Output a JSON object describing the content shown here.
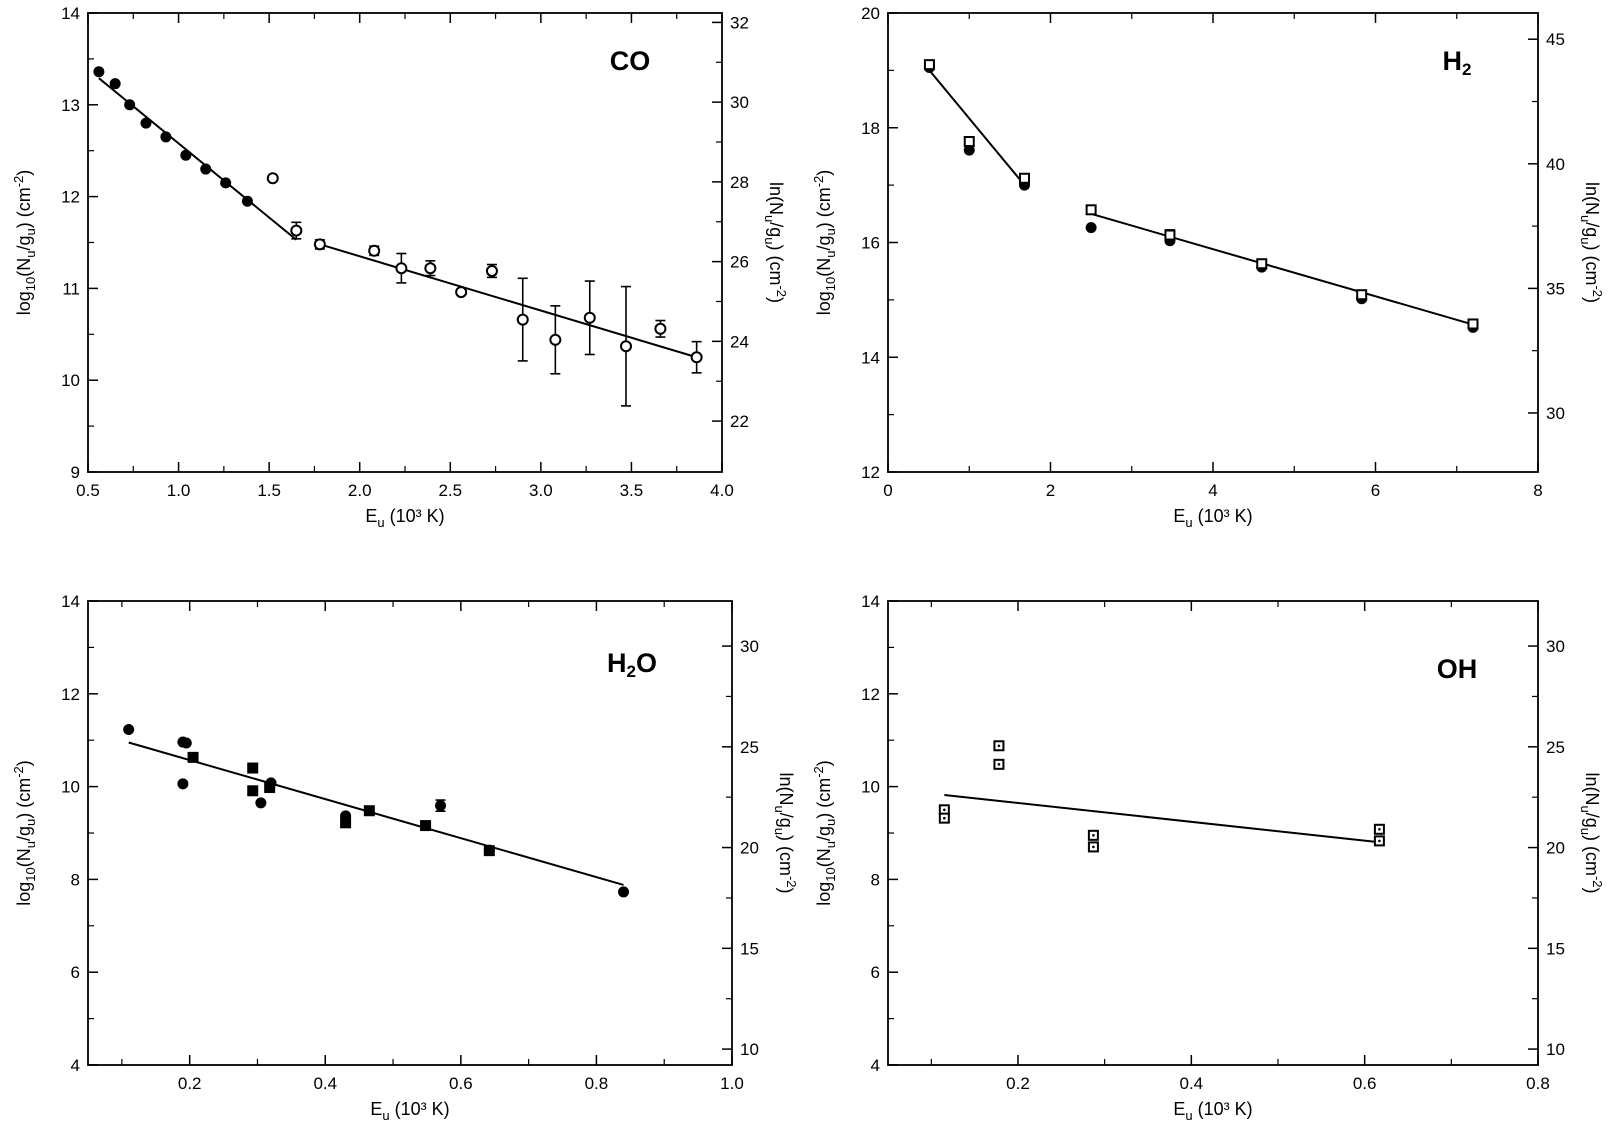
{
  "chart_data": [
    {
      "type": "scatter",
      "title": "CO",
      "title_base": "CO",
      "title_sub": "",
      "title_tail": "",
      "xlabel": "E",
      "xlabel_sub": "u",
      "xlabel_tail": " (10³ K)",
      "ylabel": "log",
      "ylabel_parts": [
        "log",
        "10",
        "(N",
        "u",
        "/g",
        "u",
        ") (cm",
        "-2",
        ")"
      ],
      "y2label_parts": [
        "ln(N",
        "u",
        "/g",
        "u",
        ") (cm",
        "-2",
        ")"
      ],
      "xlim": [
        0.5,
        4.0
      ],
      "ylim": [
        9,
        14
      ],
      "y2lim": [
        20.723,
        32.236
      ],
      "xticks": [
        0.5,
        1.0,
        1.5,
        2.0,
        2.5,
        3.0,
        3.5,
        4.0
      ],
      "xtick_labels": [
        "0.5",
        "1.0",
        "1.5",
        "2.0",
        "2.5",
        "3.0",
        "3.5",
        "4.0"
      ],
      "yticks": [
        9,
        10,
        11,
        12,
        13,
        14
      ],
      "ytick_labels": [
        "9",
        "10",
        "11",
        "12",
        "13",
        "14"
      ],
      "y2ticks": [
        22,
        24,
        26,
        28,
        30,
        32
      ],
      "y2tick_labels": [
        "22",
        "24",
        "26",
        "28",
        "30",
        "32"
      ],
      "series": [
        {
          "name": "filled circles",
          "marker": "filled-circle",
          "points": [
            [
              0.56,
              13.36
            ],
            [
              0.65,
              13.23
            ],
            [
              0.73,
              13.0
            ],
            [
              0.82,
              12.8
            ],
            [
              0.93,
              12.65
            ],
            [
              1.04,
              12.45
            ],
            [
              1.15,
              12.3
            ],
            [
              1.26,
              12.15
            ],
            [
              1.38,
              11.95
            ]
          ],
          "errors": [
            0,
            0,
            0,
            0,
            0,
            0,
            0,
            0,
            0
          ]
        },
        {
          "name": "open circles",
          "marker": "open-circle",
          "points": [
            [
              1.52,
              12.2
            ],
            [
              1.65,
              11.63
            ],
            [
              1.78,
              11.48
            ],
            [
              2.08,
              11.41
            ],
            [
              2.23,
              11.22
            ],
            [
              2.39,
              11.22
            ],
            [
              2.56,
              10.96
            ],
            [
              2.73,
              11.19
            ],
            [
              2.9,
              10.66
            ],
            [
              3.08,
              10.44
            ],
            [
              3.27,
              10.68
            ],
            [
              3.47,
              10.37
            ],
            [
              3.66,
              10.56
            ],
            [
              3.86,
              10.25
            ]
          ],
          "errors": [
            0.03,
            0.09,
            0.05,
            0.05,
            0.16,
            0.08,
            0.03,
            0.07,
            0.45,
            0.37,
            0.4,
            0.65,
            0.09,
            0.17
          ]
        }
      ],
      "fits": [
        [
          [
            0.56,
            13.29
          ],
          [
            1.65,
            11.53
          ]
        ],
        [
          [
            1.78,
            11.48
          ],
          [
            3.86,
            10.25
          ]
        ]
      ]
    },
    {
      "type": "scatter",
      "title": "H2",
      "title_base": "H",
      "title_sub": "2",
      "title_tail": "",
      "xlabel": "E",
      "xlabel_sub": "u",
      "xlabel_tail": " (10³ K)",
      "ylabel": "log",
      "ylabel_parts": [
        "log",
        "10",
        "(N",
        "u",
        "/g",
        "u",
        ") (cm",
        "-2",
        ")"
      ],
      "y2label_parts": [
        "ln(N",
        "u",
        "/g",
        "u",
        ") (cm",
        "-2",
        ")"
      ],
      "xlim": [
        0,
        8
      ],
      "ylim": [
        12,
        20
      ],
      "y2lim": [
        27.631,
        46.052
      ],
      "xticks": [
        0,
        2,
        4,
        6,
        8
      ],
      "xtick_labels": [
        "0",
        "2",
        "4",
        "6",
        "8"
      ],
      "yticks": [
        12,
        14,
        16,
        18,
        20
      ],
      "ytick_labels": [
        "12",
        "14",
        "16",
        "18",
        "20"
      ],
      "y2ticks": [
        30,
        35,
        40,
        45
      ],
      "y2tick_labels": [
        "30",
        "35",
        "40",
        "45"
      ],
      "series": [
        {
          "name": "filled circles",
          "marker": "filled-circle",
          "points": [
            [
              0.51,
              19.05
            ],
            [
              1.0,
              17.61
            ],
            [
              1.68,
              17.0
            ],
            [
              2.5,
              16.26
            ],
            [
              3.47,
              16.03
            ],
            [
              4.6,
              15.57
            ],
            [
              5.83,
              15.02
            ],
            [
              7.2,
              14.52
            ]
          ],
          "errors": [
            0,
            0,
            0,
            0,
            0,
            0,
            0,
            0
          ]
        },
        {
          "name": "open squares",
          "marker": "open-square",
          "points": [
            [
              0.51,
              19.1
            ],
            [
              1.0,
              17.76
            ],
            [
              1.68,
              17.12
            ],
            [
              2.5,
              16.57
            ],
            [
              3.47,
              16.13
            ],
            [
              4.6,
              15.63
            ],
            [
              5.83,
              15.09
            ],
            [
              7.2,
              14.58
            ]
          ],
          "errors": [
            0,
            0,
            0,
            0,
            0.09,
            0,
            0,
            0
          ]
        }
      ],
      "fits": [
        [
          [
            0.51,
            19.0
          ],
          [
            1.68,
            17.0
          ]
        ],
        [
          [
            2.5,
            16.5
          ],
          [
            7.2,
            14.57
          ]
        ]
      ]
    },
    {
      "type": "scatter",
      "title": "H2O",
      "title_base": "H",
      "title_sub": "2",
      "title_tail": "O",
      "xlabel": "E",
      "xlabel_sub": "u",
      "xlabel_tail": " (10³ K)",
      "ylabel": "log",
      "ylabel_parts": [
        "log",
        "10",
        "(N",
        "u",
        "/g",
        "u",
        ") (cm",
        "-2",
        ")"
      ],
      "y2label_parts": [
        "ln(N",
        "u",
        "/g",
        "u",
        ") (cm",
        "-2",
        ")"
      ],
      "xlim": [
        0.05,
        1.0
      ],
      "ylim": [
        4,
        14
      ],
      "y2lim": [
        9.21,
        32.236
      ],
      "xticks": [
        0.2,
        0.4,
        0.6,
        0.8,
        1.0
      ],
      "xtick_labels": [
        "0.2",
        "0.4",
        "0.6",
        "0.8",
        "1.0"
      ],
      "yticks": [
        4,
        6,
        8,
        10,
        12,
        14
      ],
      "ytick_labels": [
        "4",
        "6",
        "8",
        "10",
        "12",
        "14"
      ],
      "y2ticks": [
        10,
        15,
        20,
        25,
        30
      ],
      "y2tick_labels": [
        "10",
        "15",
        "20",
        "25",
        "30"
      ],
      "series": [
        {
          "name": "filled circles",
          "marker": "filled-circle",
          "points": [
            [
              0.11,
              11.23
            ],
            [
              0.19,
              10.96
            ],
            [
              0.195,
              10.94
            ],
            [
              0.19,
              10.06
            ],
            [
              0.305,
              9.65
            ],
            [
              0.32,
              10.08
            ],
            [
              0.43,
              9.37
            ],
            [
              0.57,
              9.59
            ],
            [
              0.642,
              8.63
            ],
            [
              0.84,
              7.73
            ]
          ],
          "errors": [
            0,
            0,
            0,
            0,
            0,
            0,
            0,
            0.12,
            0,
            0
          ]
        },
        {
          "name": "filled squares",
          "marker": "filled-square",
          "points": [
            [
              0.205,
              10.63
            ],
            [
              0.293,
              10.4
            ],
            [
              0.293,
              9.91
            ],
            [
              0.318,
              9.98
            ],
            [
              0.43,
              9.22
            ],
            [
              0.465,
              9.48
            ],
            [
              0.548,
              9.16
            ],
            [
              0.642,
              8.62
            ]
          ],
          "errors": [
            0,
            0,
            0,
            0,
            0,
            0,
            0,
            0
          ]
        }
      ],
      "fits": [
        [
          [
            0.11,
            10.95
          ],
          [
            0.84,
            7.88
          ]
        ]
      ]
    },
    {
      "type": "scatter",
      "title": "OH",
      "title_base": "OH",
      "title_sub": "",
      "title_tail": "",
      "xlabel": "E",
      "xlabel_sub": "u",
      "xlabel_tail": " (10³ K)",
      "ylabel": "log",
      "ylabel_parts": [
        "log",
        "10",
        "(N",
        "u",
        "/g",
        "u",
        ") (cm",
        "-2",
        ")"
      ],
      "y2label_parts": [
        "ln(N",
        "u",
        "/g",
        "u",
        ") (cm",
        "-2",
        ")"
      ],
      "xlim": [
        0.05,
        0.8
      ],
      "ylim": [
        4,
        14
      ],
      "y2lim": [
        9.21,
        32.236
      ],
      "xticks": [
        0.2,
        0.4,
        0.6,
        0.8
      ],
      "xtick_labels": [
        "0.2",
        "0.4",
        "0.6",
        "0.8"
      ],
      "yticks": [
        4,
        6,
        8,
        10,
        12,
        14
      ],
      "ytick_labels": [
        "4",
        "6",
        "8",
        "10",
        "12",
        "14"
      ],
      "y2ticks": [
        10,
        15,
        20,
        25,
        30
      ],
      "y2tick_labels": [
        "10",
        "15",
        "20",
        "25",
        "30"
      ],
      "series": [
        {
          "name": "open squares",
          "marker": "dotted-square",
          "points": [
            [
              0.115,
              9.5
            ],
            [
              0.115,
              9.32
            ],
            [
              0.178,
              10.88
            ],
            [
              0.178,
              10.48
            ],
            [
              0.287,
              8.95
            ],
            [
              0.287,
              8.7
            ],
            [
              0.617,
              9.08
            ],
            [
              0.617,
              8.83
            ]
          ],
          "errors": [
            0,
            0,
            0,
            0,
            0,
            0,
            0,
            0
          ]
        }
      ],
      "fits": [
        [
          [
            0.115,
            9.82
          ],
          [
            0.617,
            8.8
          ]
        ]
      ]
    }
  ]
}
